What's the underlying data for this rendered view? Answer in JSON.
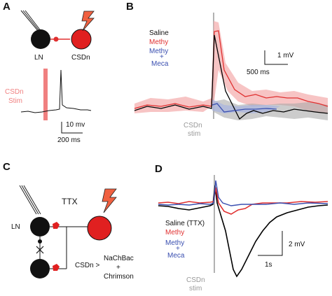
{
  "panels": {
    "a": {
      "letter": "A",
      "ln_label": "LN",
      "csdn_label": "CSDn",
      "stim_label_line1": "CSDn",
      "stim_label_line2": "Stim",
      "scale_voltage": "10 mv",
      "scale_time": "200 ms"
    },
    "b": {
      "letter": "B",
      "legend": {
        "saline": "Saline",
        "methy": "Methy",
        "methy2": "Methy",
        "plus": "+",
        "meca": "Meca"
      },
      "scale_voltage": "1 mV",
      "scale_time": "500 ms",
      "stim_line1": "CSDn",
      "stim_line2": "stim"
    },
    "c": {
      "letter": "C",
      "ttx": "TTX",
      "ln_label": "LN",
      "csdn_line": "CSDn >",
      "nachbac": "NaChBac",
      "plus": "+",
      "chrimson": "Chrimson"
    },
    "d": {
      "letter": "D",
      "legend": {
        "saline": "Saline (TTX)",
        "methy": "Methy",
        "methy2": "Methy",
        "plus": "+",
        "meca": "Meca"
      },
      "scale_voltage": "2 mV",
      "scale_time": "1s",
      "stim_line1": "CSDn",
      "stim_line2": "stim"
    }
  },
  "colors": {
    "saline": "#000000",
    "methy": "#e03030",
    "meca": "#3a4fb0",
    "stim_bar": "#f08080",
    "stim_line": "#999999"
  }
}
